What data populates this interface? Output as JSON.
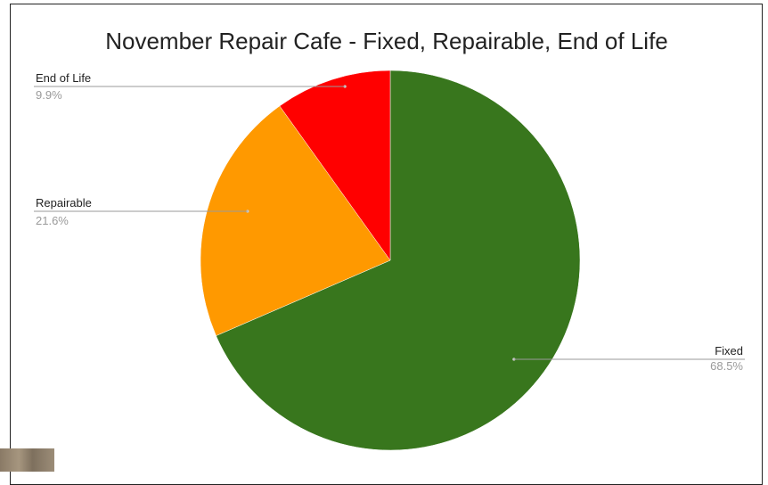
{
  "chart_data": {
    "type": "pie",
    "title": "November Repair Cafe - Fixed, Repairable, End of Life",
    "categories": [
      "Fixed",
      "Repairable",
      "End of Life"
    ],
    "values": [
      68.5,
      21.6,
      9.9
    ],
    "labels": [
      "68.5%",
      "21.6%",
      "9.9%"
    ],
    "colors": [
      "#38761d",
      "#ff9900",
      "#ff0000"
    ],
    "legend": "none",
    "slice_labels": "outside with leader lines"
  }
}
